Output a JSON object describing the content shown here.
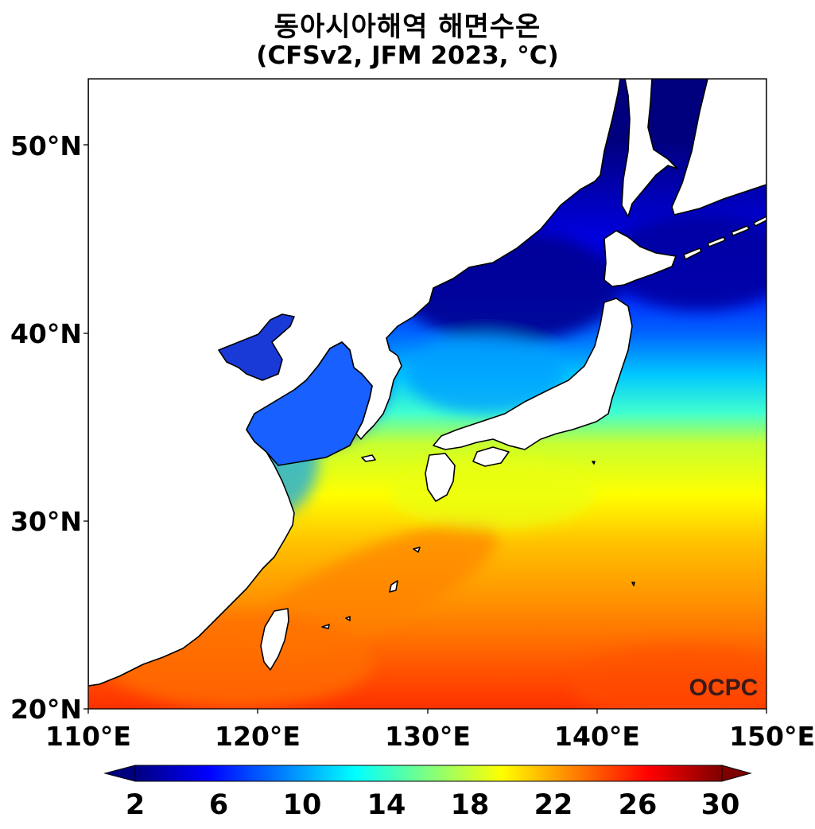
{
  "title": {
    "line1": "동아시아해역 해면수온",
    "line2": "(CFSv2, JFM 2023, °C)"
  },
  "map": {
    "lon_range": [
      110,
      150
    ],
    "lat_range": [
      20,
      53.5
    ],
    "lat_ticks": [
      {
        "value": 50,
        "label": "50°N"
      },
      {
        "value": 40,
        "label": "40°N"
      },
      {
        "value": 30,
        "label": "30°N"
      },
      {
        "value": 20,
        "label": "20°N"
      }
    ],
    "lon_ticks": [
      {
        "value": 110,
        "label": "110°E"
      },
      {
        "value": 120,
        "label": "120°E"
      },
      {
        "value": 130,
        "label": "130°E"
      },
      {
        "value": 140,
        "label": "140°E"
      },
      {
        "value": 150,
        "label": "150°E"
      }
    ],
    "watermark": "OCPC",
    "land_color": "#ffffff",
    "coast_color": "#000000"
  },
  "colorbar": {
    "variable": "sea surface temperature",
    "unit": "°C",
    "min": 2,
    "max": 30,
    "extend": "both",
    "ticks": [
      "2",
      "6",
      "10",
      "14",
      "18",
      "22",
      "26",
      "30"
    ],
    "colormap": "jet",
    "colors": [
      "#00007f",
      "#0000ff",
      "#007fff",
      "#00ffff",
      "#7fff7f",
      "#ffff00",
      "#ff7f00",
      "#ff0000",
      "#7f0000"
    ]
  }
}
